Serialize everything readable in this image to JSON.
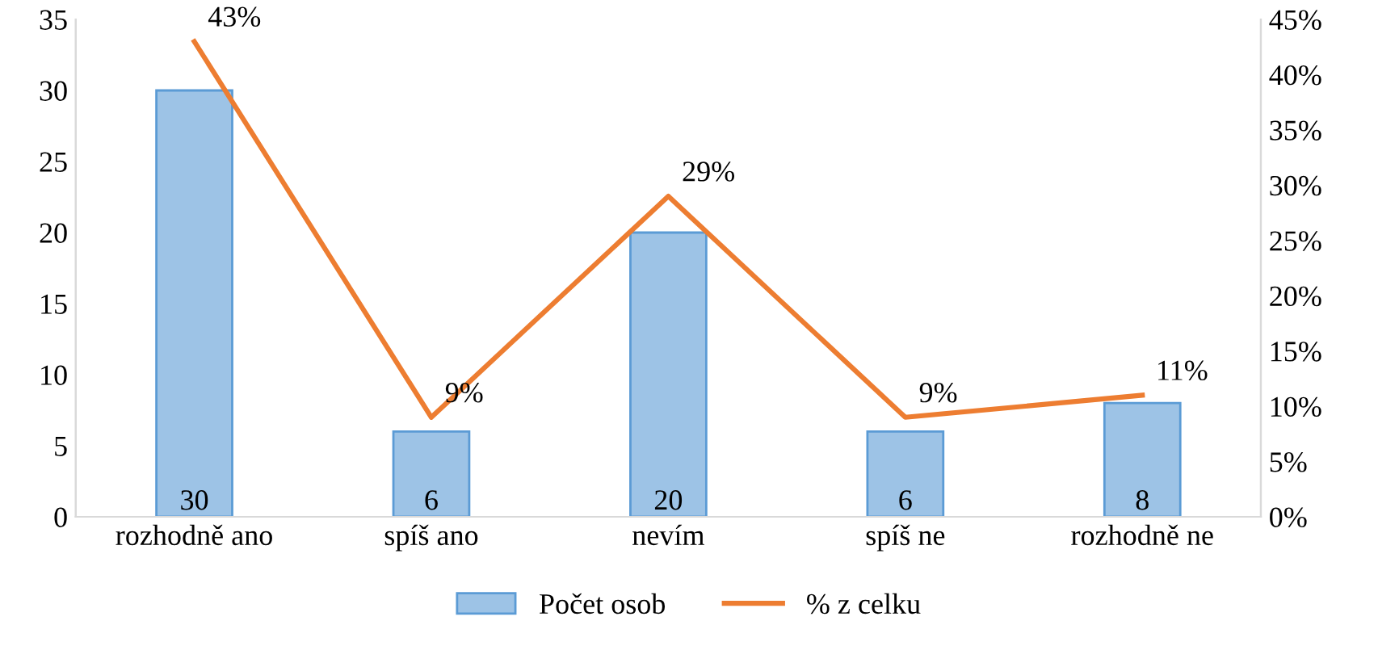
{
  "chart_data": {
    "type": "bar",
    "categories": [
      "rozhodně ano",
      "spíš ano",
      "nevím",
      "spíš ne",
      "rozhodně ne"
    ],
    "series": [
      {
        "name": "Počet osob",
        "color": "#9dc3e6",
        "values": [
          30,
          6,
          20,
          6,
          8
        ],
        "value_labels": [
          "30",
          "6",
          "20",
          "6",
          "8"
        ]
      },
      {
        "name": "% z celku",
        "type": "line",
        "axis": "y2",
        "color": "#ed7d31",
        "values": [
          43,
          9,
          29,
          9,
          11
        ],
        "value_labels": [
          "43%",
          "9%",
          "29%",
          "9%",
          "11%"
        ]
      }
    ],
    "ylim": [
      0,
      35
    ],
    "yticks": [
      0,
      5,
      10,
      15,
      20,
      25,
      30,
      35
    ],
    "y2lim": [
      0,
      45
    ],
    "y2ticks": [
      {
        "value": 0,
        "label": "0%"
      },
      {
        "value": 5,
        "label": "5%"
      },
      {
        "value": 10,
        "label": "10%"
      },
      {
        "value": 15,
        "label": "15%"
      },
      {
        "value": 20,
        "label": "20%"
      },
      {
        "value": 25,
        "label": "25%"
      },
      {
        "value": 30,
        "label": "30%"
      },
      {
        "value": 35,
        "label": "35%"
      },
      {
        "value": 40,
        "label": "40%"
      },
      {
        "value": 45,
        "label": "45%"
      }
    ],
    "grid": false,
    "legend": "bottom",
    "marker": "none",
    "line_style": "solid"
  }
}
